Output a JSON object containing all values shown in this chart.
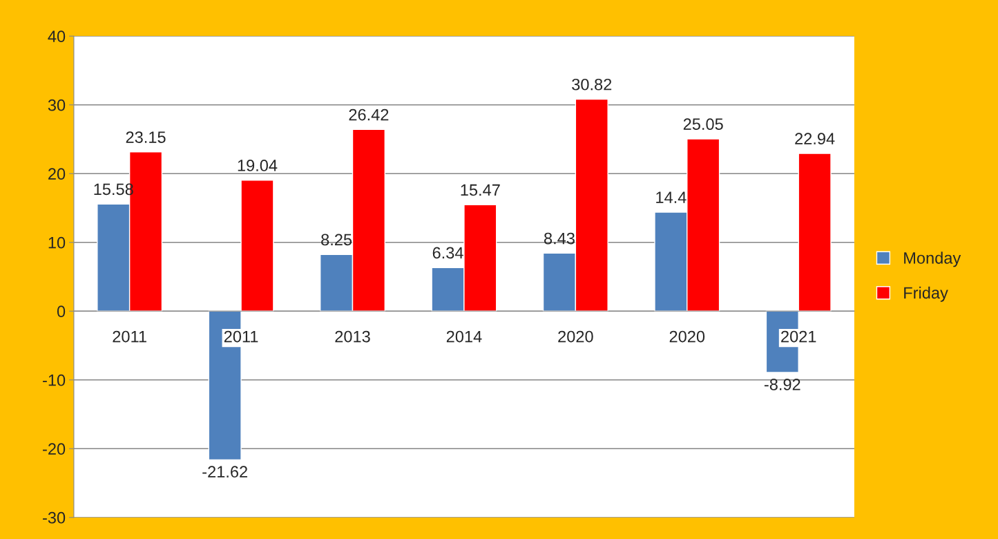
{
  "chart_data": {
    "type": "bar",
    "categories": [
      "2011",
      "2011",
      "2013",
      "2014",
      "2020",
      "2020",
      "2021"
    ],
    "series": [
      {
        "name": "Monday",
        "color": "#4f81bd",
        "values": [
          15.58,
          -21.62,
          8.25,
          6.34,
          8.43,
          14.4,
          -8.92
        ]
      },
      {
        "name": "Friday",
        "color": "#ff0000",
        "values": [
          23.15,
          19.04,
          26.42,
          15.47,
          30.82,
          25.05,
          22.94
        ]
      }
    ],
    "ylim": [
      -30,
      40
    ],
    "yticks": [
      -30,
      -20,
      -10,
      0,
      10,
      20,
      30,
      40
    ],
    "grid": "y",
    "legend": "right",
    "data_labels": true
  }
}
